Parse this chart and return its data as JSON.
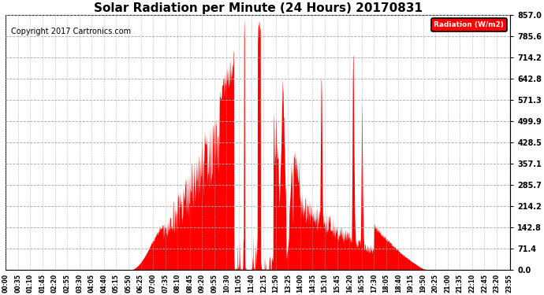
{
  "title": "Solar Radiation per Minute (24 Hours) 20170831",
  "copyright_text": "Copyright 2017 Cartronics.com",
  "legend_label": "Radiation (W/m2)",
  "yticks": [
    0.0,
    71.4,
    142.8,
    214.2,
    285.7,
    357.1,
    428.5,
    499.9,
    571.3,
    642.8,
    714.2,
    785.6,
    857.0
  ],
  "ymax": 857.0,
  "ymin": 0.0,
  "fill_color": "#FF0000",
  "line_color": "#FF0000",
  "background_color": "#FFFFFF",
  "grid_color": "#AAAAAA",
  "title_fontsize": 11,
  "copyright_fontsize": 7,
  "total_minutes": 1440,
  "sunrise_minute": 355,
  "sunset_minute": 1210,
  "peak_minute": 700,
  "peak_value": 857.0
}
